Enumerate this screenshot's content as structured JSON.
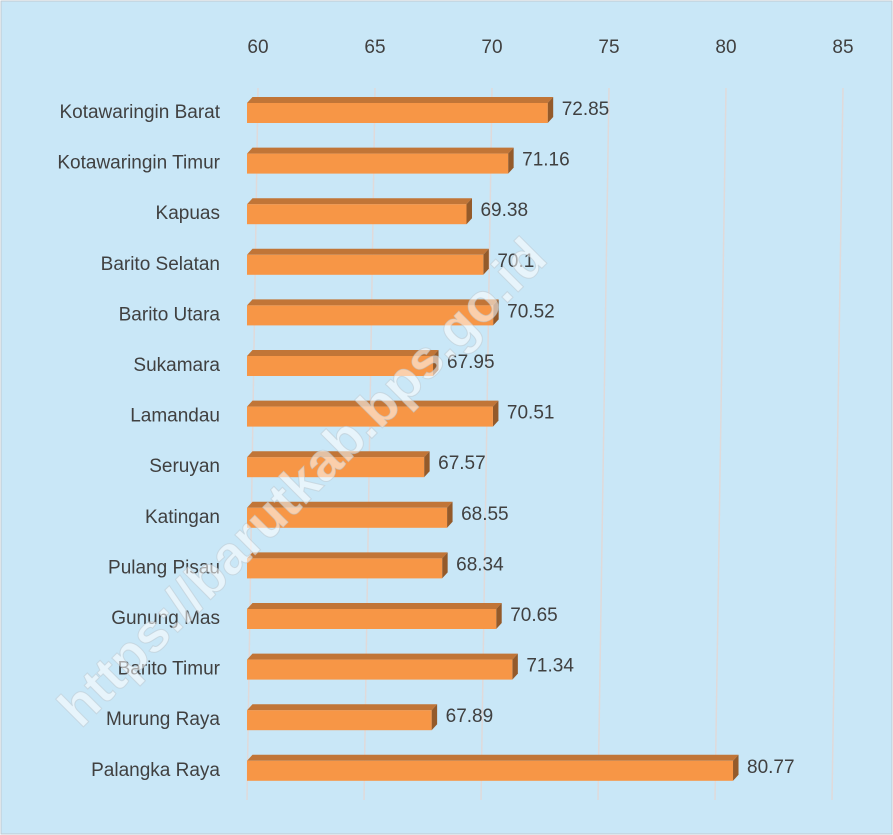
{
  "chart_data": {
    "type": "bar",
    "orientation": "horizontal",
    "categories": [
      "Kotawaringin Barat",
      "Kotawaringin Timur",
      "Kapuas",
      "Barito Selatan",
      "Barito Utara",
      "Sukamara",
      "Lamandau",
      "Seruyan",
      "Katingan",
      "Pulang Pisau",
      "Gunung Mas",
      "Barito Timur",
      "Murung Raya",
      "Palangka Raya"
    ],
    "values": [
      72.85,
      71.16,
      69.38,
      70.1,
      70.52,
      67.95,
      70.51,
      67.57,
      68.55,
      68.34,
      70.65,
      71.34,
      67.89,
      80.77
    ],
    "color": "#f79646",
    "xlim": [
      60,
      85
    ],
    "xticks": [
      60,
      65,
      70,
      75,
      80,
      85
    ],
    "grid": true,
    "watermark": "https://barutkab.bps.go.id"
  }
}
